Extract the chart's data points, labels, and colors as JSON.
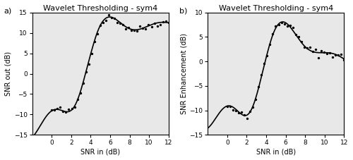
{
  "title": "Wavelet Thresholding - sym4",
  "xlabel": "SNR in (dB)",
  "ylabel_a": "SNR out (dB)",
  "ylabel_b": "SNR Enhancement (dB)",
  "label_a": "a)",
  "label_b": "b)",
  "xlim": [
    -2,
    12
  ],
  "ylim_a": [
    -15,
    15
  ],
  "ylim_b": [
    -15,
    10
  ],
  "xticks": [
    0,
    2,
    4,
    6,
    8,
    10,
    12
  ],
  "yticks_a": [
    -15,
    -10,
    -5,
    0,
    5,
    10,
    15
  ],
  "yticks_b": [
    -15,
    -10,
    -5,
    0,
    5,
    10
  ],
  "bg_color": "#ffffff",
  "plot_bg": "#e8e8e8",
  "line_color": "#000000",
  "dot_color": "#000000",
  "title_fontsize": 8,
  "label_fontsize": 7,
  "tick_fontsize": 6.5
}
